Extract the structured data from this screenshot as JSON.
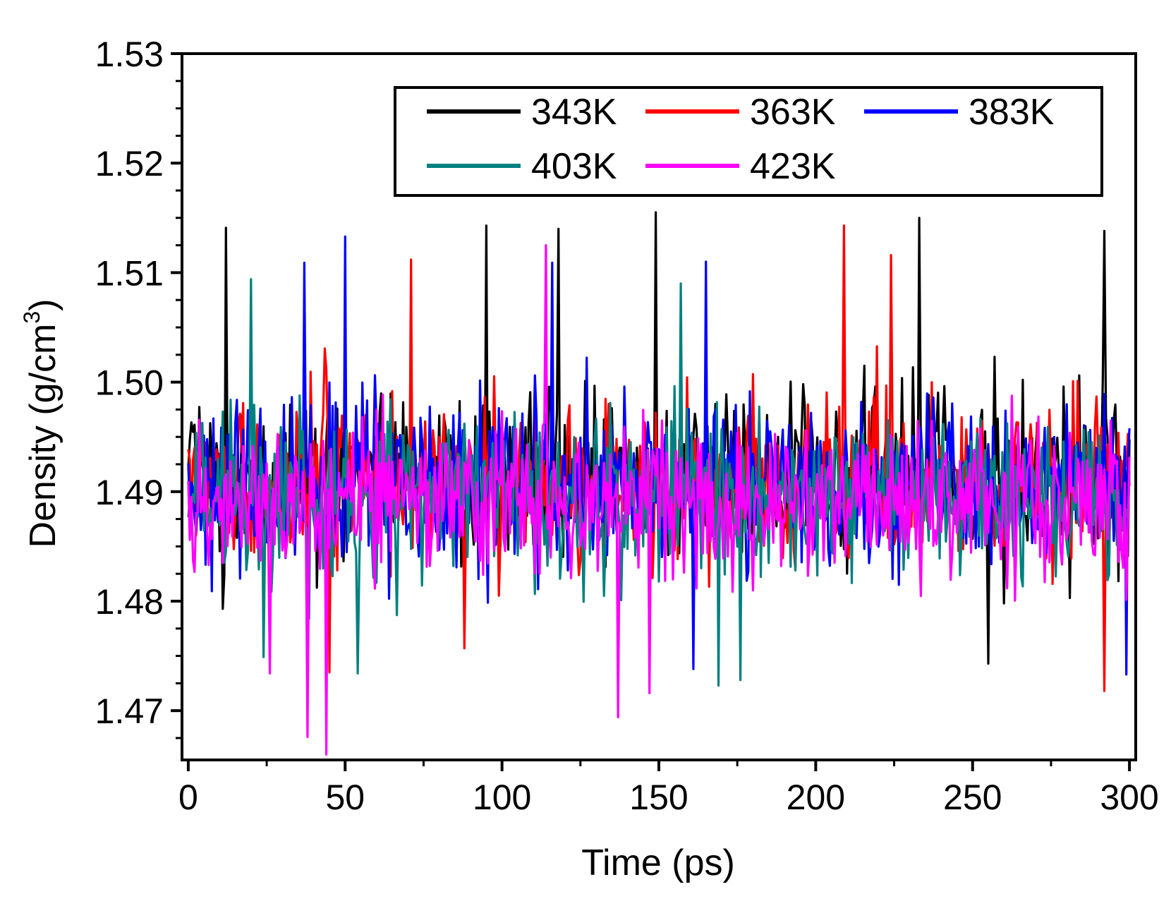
{
  "chart_data": {
    "type": "line",
    "title": "",
    "xlabel": "Time (ps)",
    "ylabel_main": "Density (g/cm",
    "ylabel_sup": "3",
    "ylabel_close": ")",
    "xlim": [
      -2,
      302
    ],
    "ylim": [
      1.4655,
      1.53
    ],
    "x_ticks": [
      0,
      50,
      100,
      150,
      200,
      250,
      300
    ],
    "x_tick_labels": [
      "0",
      "50",
      "100",
      "150",
      "200",
      "250",
      "300"
    ],
    "x_minor_ticks": [
      25,
      75,
      125,
      175,
      225,
      275
    ],
    "y_ticks": [
      1.47,
      1.48,
      1.49,
      1.5,
      1.51,
      1.52,
      1.53
    ],
    "y_tick_labels": [
      "1.47",
      "1.48",
      "1.49",
      "1.50",
      "1.51",
      "1.52",
      "1.53"
    ],
    "y_minor_ticks": [
      1.4675,
      1.4725,
      1.475,
      1.4775,
      1.4825,
      1.485,
      1.4875,
      1.4925,
      1.495,
      1.4975,
      1.5025,
      1.505,
      1.5075,
      1.5125,
      1.515,
      1.5175,
      1.5225,
      1.525,
      1.5275
    ],
    "grid": false,
    "legend_position": "top-right",
    "x_step_ps": 0.5,
    "series": [
      {
        "name": "343K",
        "color": "#000000",
        "seed": 343,
        "mean": 1.4915,
        "sd": 0.0052,
        "min": 1.4743,
        "max": 1.5155,
        "peaks": [
          [
            12,
            1.5141
          ],
          [
            95,
            1.5143
          ],
          [
            118,
            1.514
          ],
          [
            149,
            1.5155
          ],
          [
            233,
            1.515
          ],
          [
            292,
            1.5138
          ],
          [
            11,
            1.4793
          ],
          [
            255,
            1.4743
          ]
        ]
      },
      {
        "name": "363K",
        "color": "#ff0000",
        "seed": 363,
        "mean": 1.491,
        "sd": 0.0052,
        "min": 1.4718,
        "max": 1.5143,
        "peaks": [
          [
            209,
            1.5143
          ],
          [
            71,
            1.5112
          ],
          [
            224,
            1.5116
          ],
          [
            43,
            1.4971
          ],
          [
            45,
            1.4735
          ],
          [
            292,
            1.4718
          ],
          [
            88,
            1.4757
          ]
        ]
      },
      {
        "name": "383K",
        "color": "#0000ff",
        "seed": 383,
        "mean": 1.4905,
        "sd": 0.0052,
        "min": 1.4733,
        "max": 1.5133,
        "peaks": [
          [
            50,
            1.5133
          ],
          [
            37,
            1.5109
          ],
          [
            116,
            1.5109
          ],
          [
            165,
            1.511
          ],
          [
            299,
            1.4733
          ],
          [
            161,
            1.4738
          ]
        ]
      },
      {
        "name": "403K",
        "color": "#008080",
        "seed": 403,
        "mean": 1.4895,
        "sd": 0.0052,
        "min": 1.4723,
        "max": 1.5094,
        "peaks": [
          [
            20,
            1.5094
          ],
          [
            157,
            1.509
          ],
          [
            54,
            1.4734
          ],
          [
            169,
            1.4723
          ],
          [
            176,
            1.4728
          ],
          [
            24,
            1.4749
          ]
        ]
      },
      {
        "name": "423K",
        "color": "#ff00ff",
        "seed": 423,
        "mean": 1.489,
        "sd": 0.0048,
        "min": 1.466,
        "max": 1.5125,
        "peaks": [
          [
            114,
            1.5125
          ],
          [
            44,
            1.466
          ],
          [
            38,
            1.4676
          ],
          [
            137,
            1.4694
          ],
          [
            147,
            1.4716
          ],
          [
            26,
            1.4734
          ]
        ]
      }
    ]
  }
}
